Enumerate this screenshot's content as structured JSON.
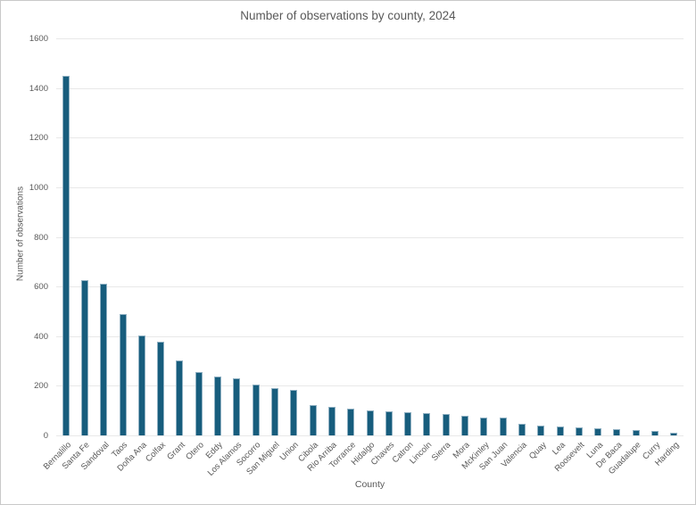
{
  "chart_data": {
    "type": "bar",
    "title": "Number of observations by county, 2024",
    "xlabel": "County",
    "ylabel": "Number of observations",
    "ylim": [
      0,
      1600
    ],
    "ytick_step": 200,
    "grid": true,
    "legend": "none",
    "bar_color": "#175d7d",
    "bar_edge_color": "#8fb0c2",
    "grid_color": "#e8e8e8",
    "text_color": "#595959",
    "categories": [
      "Bernalillo",
      "Santa Fe",
      "Sandoval",
      "Taos",
      "Doña Ana",
      "Colfax",
      "Grant",
      "Otero",
      "Eddy",
      "Los Alamos",
      "Socorro",
      "San Miguel",
      "Union",
      "Cibola",
      "Rio Arriba",
      "Torrance",
      "Hidalgo",
      "Chaves",
      "Catron",
      "Lincoln",
      "Sierra",
      "Mora",
      "McKinley",
      "San Juan",
      "Valencia",
      "Quay",
      "Lea",
      "Roosevelt",
      "Luna",
      "De Baca",
      "Guadalupe",
      "Curry",
      "Harding"
    ],
    "values": [
      1450,
      627,
      610,
      488,
      402,
      378,
      301,
      257,
      237,
      230,
      206,
      192,
      182,
      123,
      116,
      108,
      100,
      96,
      93,
      90,
      85,
      79,
      73,
      71,
      48,
      38,
      35,
      31,
      28,
      25,
      22,
      18,
      10
    ]
  }
}
